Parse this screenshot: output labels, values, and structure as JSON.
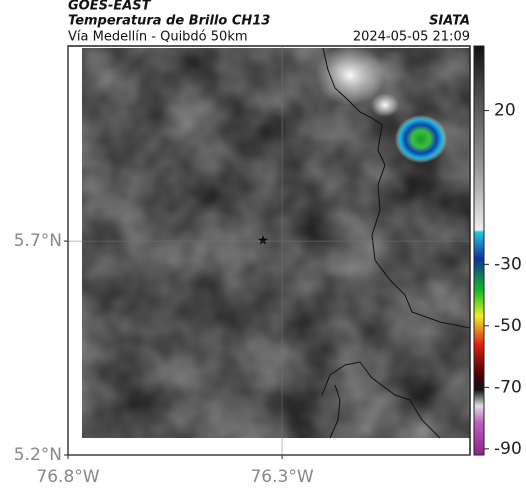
{
  "header": {
    "source": "GOES-EAST",
    "product": "Temperatura de Brillo CH13",
    "agency": "SIATA",
    "route": "Vía Medellín - Quibdó 50km",
    "datetime": "2024-05-05 21:09"
  },
  "map": {
    "xlim": [
      -76.8,
      -75.861
    ],
    "ylim": [
      5.2,
      6.156
    ],
    "xticks": [
      {
        "value": -76.8,
        "label": "76.8°W"
      },
      {
        "value": -76.3,
        "label": "76.3°W"
      }
    ],
    "yticks": [
      {
        "value": 5.7,
        "label": "5.7°N"
      },
      {
        "value": 5.2,
        "label": "5.2°N"
      }
    ],
    "grid": true
  },
  "colorbar": {
    "lim": [
      -92,
      41
    ],
    "ticks": [
      20,
      -30,
      -50,
      -70,
      -90
    ]
  }
}
